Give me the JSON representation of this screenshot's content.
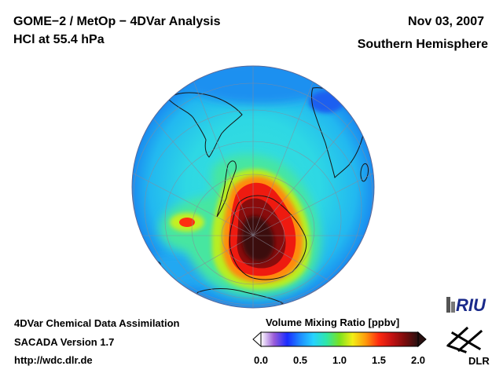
{
  "header": {
    "title_line1": "GOME−2 / MetOp − 4DVar Analysis",
    "title_line2": "HCl at 55.4 hPa",
    "date": "Nov 03, 2007",
    "hemisphere": "Southern Hemisphere"
  },
  "footer": {
    "line1": "4DVar Chemical Data Assimilation",
    "line2": "SACADA Version 1.7",
    "line3": "http://wdc.dlr.de"
  },
  "colorbar": {
    "title": "Volume Mixing Ratio [ppbv]",
    "min": 0.0,
    "max": 2.0,
    "ticks": [
      "0.0",
      "0.5",
      "1.0",
      "1.5",
      "2.0"
    ],
    "colors": [
      "#ffffff",
      "#9a5cd8",
      "#1a2cff",
      "#1e8cff",
      "#26d2ff",
      "#2ee6a8",
      "#7be21e",
      "#f2ee16",
      "#ff9a0c",
      "#ff2a10",
      "#c41212",
      "#7a0c0c",
      "#281010"
    ]
  },
  "map": {
    "projection": "orthographic, South Pole centered",
    "background_level": 0.62,
    "maximum_region_level": 1.95
  },
  "logos": {
    "riu": "RIU",
    "dlr": "DLR"
  }
}
